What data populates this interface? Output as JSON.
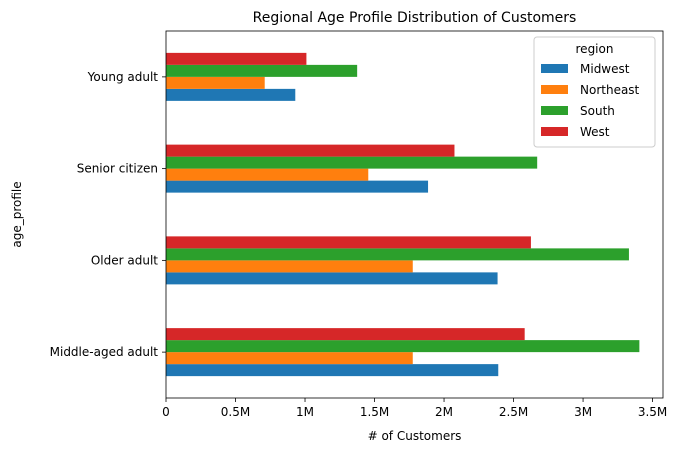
{
  "chart_data": {
    "type": "bar",
    "orientation": "horizontal",
    "title": "Regional Age Profile Distribution of Customers",
    "xlabel": "# of Customers",
    "ylabel": "age_profile",
    "categories": [
      "Middle-aged adult",
      "Older adult",
      "Senior citizen",
      "Young adult"
    ],
    "series": [
      {
        "name": "Midwest",
        "color": "#1f77b4",
        "values": [
          2390000,
          2385000,
          1885000,
          930000
        ]
      },
      {
        "name": "Northeast",
        "color": "#ff7f0e",
        "values": [
          1775000,
          1775000,
          1455000,
          710000
        ]
      },
      {
        "name": "South",
        "color": "#2ca02c",
        "values": [
          3405000,
          3330000,
          2670000,
          1375000
        ]
      },
      {
        "name": "West",
        "color": "#d62728",
        "values": [
          2580000,
          2625000,
          2075000,
          1010000
        ]
      }
    ],
    "xlim": [
      0,
      3575000
    ],
    "xticks": [
      0,
      500000,
      1000000,
      1500000,
      2000000,
      2500000,
      3000000,
      3500000
    ],
    "xtick_labels": [
      "0",
      "0.5M",
      "1M",
      "1.5M",
      "2M",
      "2.5M",
      "3M",
      "3.5M"
    ],
    "legend": {
      "title": "region",
      "placement": "top-right"
    },
    "grid": false
  }
}
